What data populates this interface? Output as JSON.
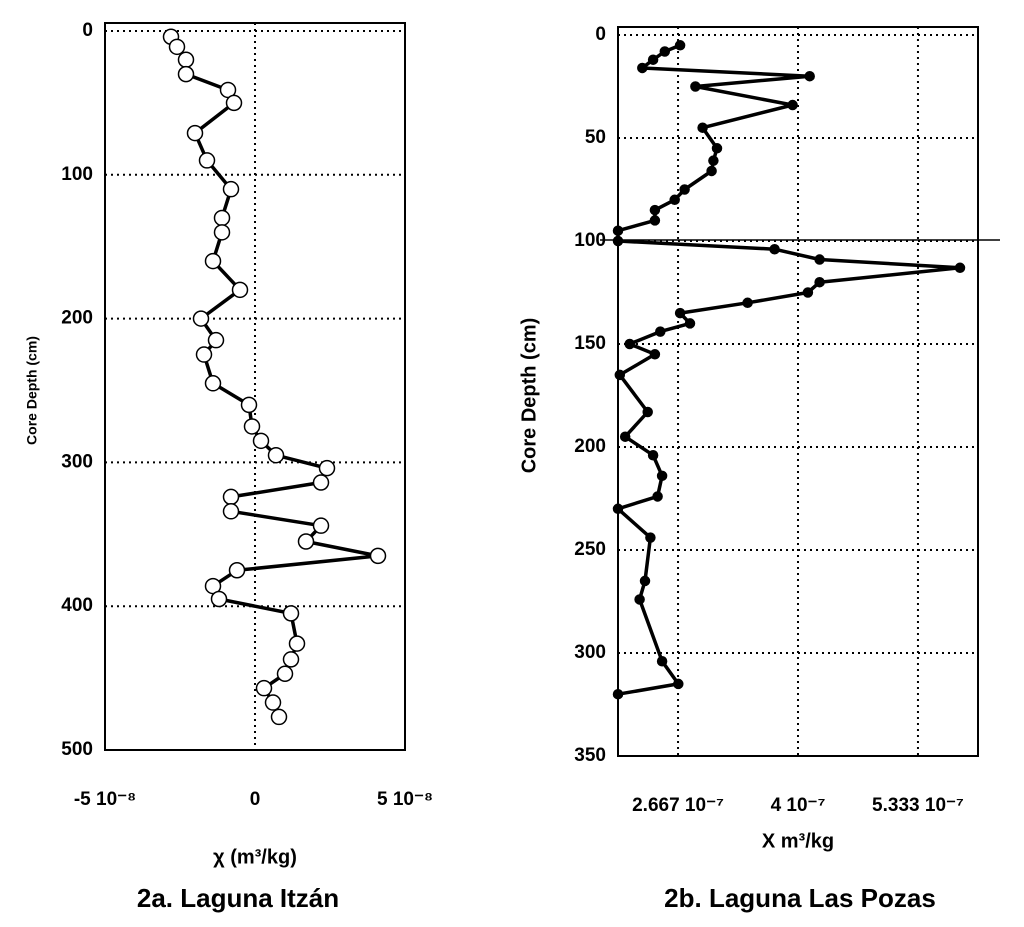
{
  "chart_data": [
    {
      "type": "line",
      "title": "2a. Laguna Itzán",
      "xlabel": "χ (m³/kg)",
      "ylabel": "Core Depth (cm)",
      "marker": "open-circle",
      "color": "#000000",
      "grid": true,
      "y_inverted": true,
      "xlim": [
        -5e-08,
        5e-08
      ],
      "xticks": [
        {
          "value": -5e-08,
          "label": "-5 10⁻⁸"
        },
        0,
        {
          "value": 5e-08,
          "label": "5 10⁻⁸"
        }
      ],
      "ylim": [
        0,
        500
      ],
      "yticks": [
        0,
        100,
        200,
        300,
        400,
        500
      ],
      "values": [
        -2.8e-08,
        -2.6e-08,
        -2.3e-08,
        -2.3e-08,
        -9e-09,
        -7e-09,
        -2e-08,
        -1.6e-08,
        -8e-09,
        -1.1e-08,
        -1.1e-08,
        -1.4e-08,
        -5e-09,
        -1.8e-08,
        -1.3e-08,
        -1.7e-08,
        -1.4e-08,
        -2e-09,
        -1e-09,
        2e-09,
        7e-09,
        2.4e-08,
        2.2e-08,
        -8e-09,
        -8e-09,
        2.2e-08,
        1.7e-08,
        4.1e-08,
        -6e-09,
        -1.4e-08,
        -1.2e-08,
        1.2e-08,
        1.4e-08,
        1.2e-08,
        1e-08,
        3e-09,
        6e-09,
        8e-09
      ],
      "depths": [
        4,
        11,
        20,
        30,
        41,
        50,
        71,
        90,
        110,
        130,
        140,
        160,
        180,
        200,
        215,
        225,
        245,
        260,
        275,
        285,
        295,
        304,
        314,
        324,
        334,
        344,
        355,
        365,
        375,
        386,
        395,
        405,
        426,
        437,
        447,
        457,
        467,
        477
      ]
    },
    {
      "type": "line",
      "title": "2b. Laguna Las Pozas",
      "xlabel": "X m³/kg",
      "ylabel": "Core Depth (cm)",
      "marker": "dot",
      "color": "#000000",
      "grid": true,
      "y_inverted": true,
      "xlim": [
        2e-07,
        6e-07
      ],
      "xticks": [
        {
          "value": 2.667e-07,
          "label": "2.667 10⁻⁷"
        },
        {
          "value": 4e-07,
          "label": "4 10⁻⁷"
        },
        {
          "value": 5.333e-07,
          "label": "5.333 10⁻⁷"
        }
      ],
      "ylim": [
        0,
        350
      ],
      "yticks": [
        0,
        50,
        100,
        150,
        200,
        250,
        300,
        350
      ],
      "values": [
        2.69e-07,
        2.52e-07,
        2.39e-07,
        2.27e-07,
        4.13e-07,
        2.86e-07,
        3.94e-07,
        2.94e-07,
        3.1e-07,
        3.06e-07,
        3.04e-07,
        2.74e-07,
        2.63e-07,
        2.41e-07,
        2.41e-07,
        2e-07,
        2e-07,
        3.74e-07,
        4.24e-07,
        5.8e-07,
        4.24e-07,
        4.11e-07,
        3.44e-07,
        2.69e-07,
        2.8e-07,
        2.47e-07,
        2.13e-07,
        2.41e-07,
        2.02e-07,
        2.33e-07,
        2.08e-07,
        2.39e-07,
        2.49e-07,
        2.44e-07,
        2e-07,
        2.36e-07,
        2.3e-07,
        2.24e-07,
        2.49e-07,
        2.67e-07,
        2e-07
      ],
      "depths": [
        5,
        8,
        12,
        16,
        20,
        25,
        34,
        45,
        55,
        61,
        66,
        75,
        80,
        85,
        90,
        95,
        100,
        104,
        109,
        113,
        120,
        125,
        130,
        135,
        140,
        144,
        150,
        155,
        165,
        183,
        195,
        204,
        214,
        224,
        230,
        244,
        265,
        274,
        304,
        315,
        320
      ]
    }
  ]
}
